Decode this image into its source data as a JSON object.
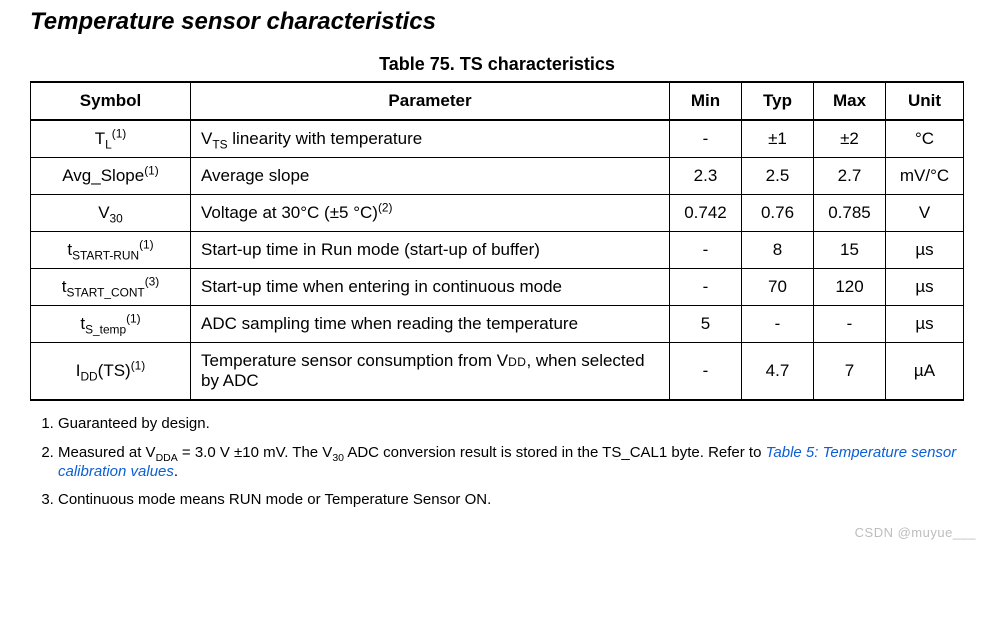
{
  "section_title": "Temperature sensor characteristics",
  "table": {
    "caption": "Table 75. TS characteristics",
    "headers": {
      "symbol": "Symbol",
      "parameter": "Parameter",
      "min": "Min",
      "typ": "Typ",
      "max": "Max",
      "unit": "Unit"
    },
    "rows": [
      {
        "sym_base": "T",
        "sym_sub": "L",
        "sym_sup": "(1)",
        "param_html": "V<sub>TS</sub> linearity with temperature",
        "min": "-",
        "typ": "±1",
        "max": "±2",
        "unit": "°C"
      },
      {
        "sym_plain": "Avg_Slope",
        "sym_sup": "(1)",
        "param_html": "Average slope",
        "min": "2.3",
        "typ": "2.5",
        "max": "2.7",
        "unit": "mV/°C"
      },
      {
        "sym_base": "V",
        "sym_sub": "30",
        "param_html": "Voltage at 30°C (±5 °C)<sup>(2)</sup>",
        "min": "0.742",
        "typ": "0.76",
        "max": "0.785",
        "unit": "V"
      },
      {
        "sym_base": "t",
        "sym_sub": "START-RUN",
        "sym_sup": "(1)",
        "param_html": "Start-up time in Run mode (start-up of buffer)",
        "min": "-",
        "typ": "8",
        "max": "15",
        "unit": "µs"
      },
      {
        "sym_base": "t",
        "sym_sub": "START_CONT",
        "sym_sup": "(3)",
        "param_html": "Start-up time when entering in continuous mode",
        "min": "-",
        "typ": "70",
        "max": "120",
        "unit": "µs"
      },
      {
        "sym_base": "t",
        "sym_sub": "S_temp",
        "sym_sup": "(1)",
        "param_html": "ADC sampling time when reading the temperature",
        "min": "5",
        "typ": "-",
        "max": "-",
        "unit": "µs"
      },
      {
        "sym_base": "I",
        "sym_sub": "DD",
        "sym_tail": "(TS)",
        "sym_sup": "(1)",
        "param_html": "Temperature sensor consumption from V<span class=\"sc\">DD</span>, when selected by ADC",
        "min": "-",
        "typ": "4.7",
        "max": "7",
        "unit": "µA"
      }
    ]
  },
  "footnotes": {
    "n1": "Guaranteed by design.",
    "n2_pre": "Measured at V",
    "n2_sub1": "DDA",
    "n2_mid1": " = 3.0 V ±10 mV. The V",
    "n2_sub2": "30",
    "n2_mid2": " ADC conversion result is stored in the TS_CAL1 byte. Refer to ",
    "n2_link": "Table 5: Temperature sensor calibration values",
    "n2_post": ".",
    "n3": "Continuous mode means RUN mode or Temperature Sensor ON."
  },
  "watermark": "CSDN @muyue___"
}
